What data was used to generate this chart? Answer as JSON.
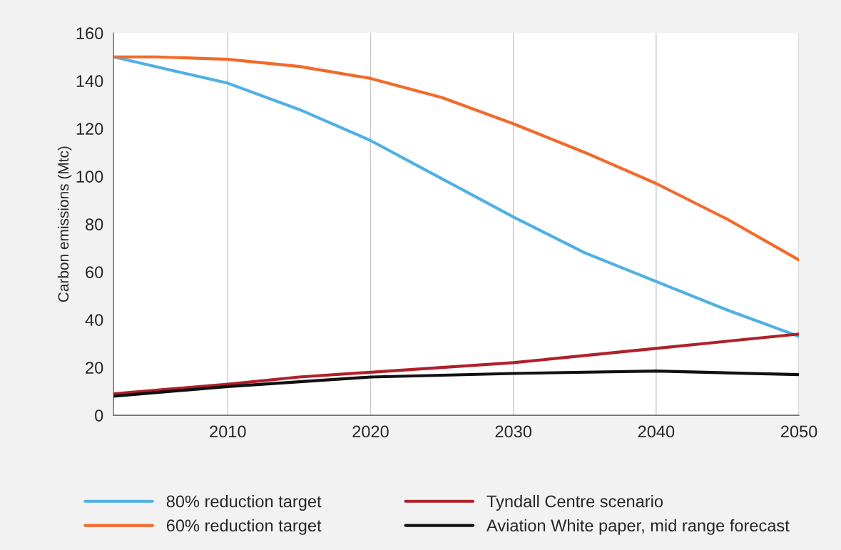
{
  "chart_data": {
    "type": "line",
    "ylabel": "Carbon emissions (Mtc)",
    "xlim": [
      2002,
      2050
    ],
    "xticks": [
      2010,
      2020,
      2030,
      2040,
      2050
    ],
    "ylim": [
      0,
      160
    ],
    "yticks": [
      0,
      20,
      40,
      60,
      80,
      100,
      120,
      140,
      160
    ],
    "grid": "x",
    "legend": "bottom",
    "marker": "none",
    "line_style": "solid",
    "series": [
      {
        "name": "80% reduction target",
        "color": "#4fb0e5",
        "x": [
          2002,
          2010,
          2015,
          2020,
          2025,
          2030,
          2035,
          2040,
          2045,
          2050
        ],
        "values": [
          150,
          139,
          128,
          115,
          99,
          83,
          68,
          56,
          44,
          33
        ]
      },
      {
        "name": "60% reduction target",
        "color": "#f26a2a",
        "x": [
          2002,
          2005,
          2010,
          2015,
          2020,
          2025,
          2030,
          2035,
          2040,
          2045,
          2050
        ],
        "values": [
          150,
          150,
          149,
          146,
          141,
          133,
          122,
          110,
          97,
          82,
          65
        ]
      },
      {
        "name": "Tyndall Centre scenario",
        "color": "#b0202a",
        "x": [
          2002,
          2010,
          2015,
          2020,
          2025,
          2030,
          2035,
          2040,
          2045,
          2050
        ],
        "values": [
          9,
          13,
          16,
          18,
          20,
          22,
          25,
          28,
          31,
          34
        ]
      },
      {
        "name": "Aviation White paper, mid range forecast",
        "color": "#111111",
        "x": [
          2002,
          2010,
          2020,
          2030,
          2040,
          2050
        ],
        "values": [
          8,
          12,
          16,
          17.5,
          18.5,
          17
        ]
      }
    ]
  }
}
